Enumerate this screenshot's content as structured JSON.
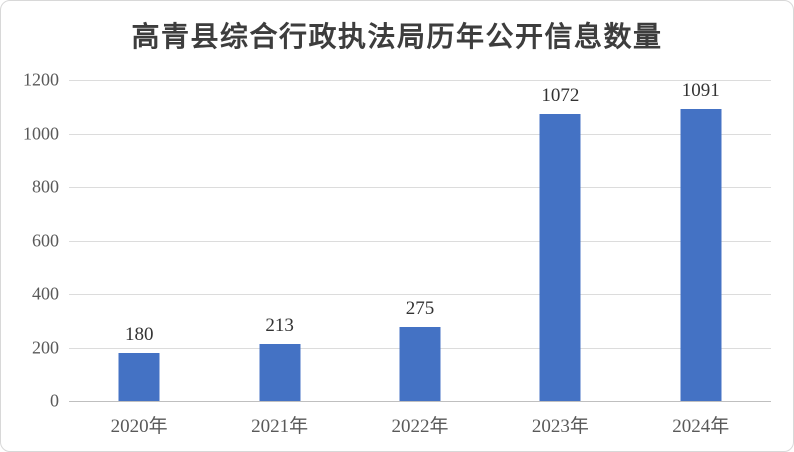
{
  "chart_data": {
    "type": "bar",
    "title": "高青县综合行政执法局历年公开信息数量",
    "categories": [
      "2020年",
      "2021年",
      "2022年",
      "2023年",
      "2024年"
    ],
    "values": [
      180,
      213,
      275,
      1072,
      1091
    ],
    "data_labels": [
      "180",
      "213",
      "275",
      "1072",
      "1091"
    ],
    "xlabel": "",
    "ylabel": "",
    "ylim": [
      0,
      1200
    ],
    "yticks": [
      0,
      200,
      400,
      600,
      800,
      1000,
      1200
    ],
    "grid": "horizontal",
    "legend_position": "none",
    "colors": {
      "bar": "#4472c4",
      "gridline": "#dcdcdc",
      "axis_line": "#bfbfbf",
      "tick_label": "#595959",
      "data_label": "#333333",
      "title": "#3d3d3d",
      "background": "#ffffff",
      "frame_border": "#d8d8d8"
    }
  }
}
